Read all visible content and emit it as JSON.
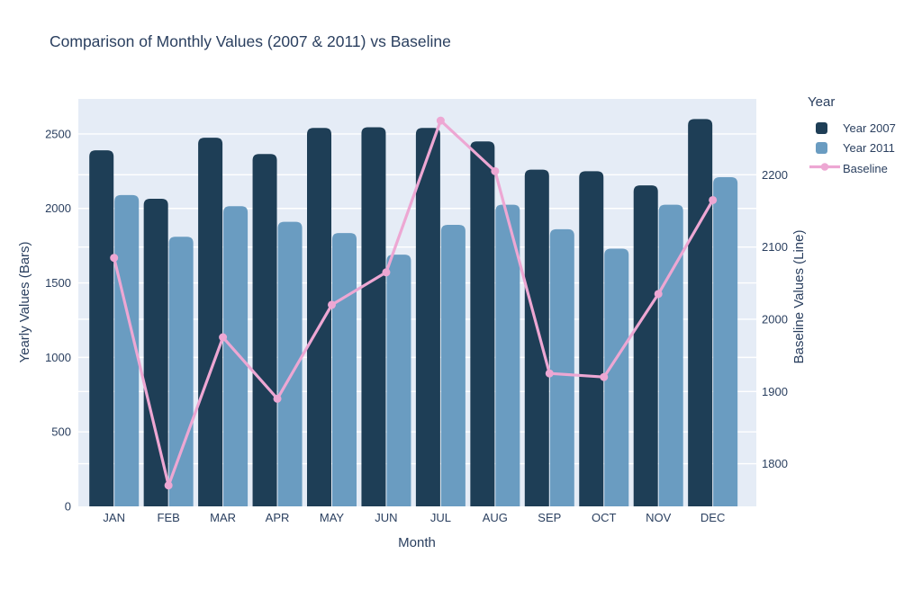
{
  "colors": {
    "text": "#2a3f5f",
    "paper_bg": "#ffffff",
    "plot_bg": "#e5ecf6",
    "grid": "#ffffff",
    "year2007": "#1e3e56",
    "year2011": "#6a9cc1",
    "baseline": "#eda7d3"
  },
  "legend": {
    "title": "Year"
  },
  "chart_data": {
    "type": "bar+line",
    "title": "Comparison of Monthly Values (2007 & 2011) vs Baseline",
    "xlabel": "Month",
    "ylabel_left": "Yearly Values (Bars)",
    "ylabel_right": "Baseline Values (Line)",
    "categories": [
      "JAN",
      "FEB",
      "MAR",
      "APR",
      "MAY",
      "JUN",
      "JUL",
      "AUG",
      "SEP",
      "OCT",
      "NOV",
      "DEC"
    ],
    "series": [
      {
        "name": "Year 2007",
        "type": "bar",
        "axis": "left",
        "color": "#1e3e56",
        "values": [
          2390,
          2065,
          2475,
          2365,
          2540,
          2545,
          2540,
          2450,
          2260,
          2250,
          2155,
          2600
        ]
      },
      {
        "name": "Year 2011",
        "type": "bar",
        "axis": "left",
        "color": "#6a9cc1",
        "values": [
          2090,
          1810,
          2015,
          1910,
          1835,
          1690,
          1890,
          2025,
          1860,
          1730,
          2025,
          2210
        ]
      },
      {
        "name": "Baseline",
        "type": "line",
        "axis": "right",
        "color": "#eda7d3",
        "values": [
          2085,
          1770,
          1975,
          1890,
          2020,
          2065,
          2275,
          2205,
          1925,
          1920,
          2035,
          2165
        ]
      }
    ],
    "yticks_left": [
      0,
      500,
      1000,
      1500,
      2000,
      2500
    ],
    "yticks_right": [
      1800,
      1900,
      2000,
      2100,
      2200
    ],
    "ylim_left": [
      0,
      2735
    ],
    "ylim_right": [
      1741,
      2305
    ],
    "grid": true,
    "legend_position": "right"
  }
}
